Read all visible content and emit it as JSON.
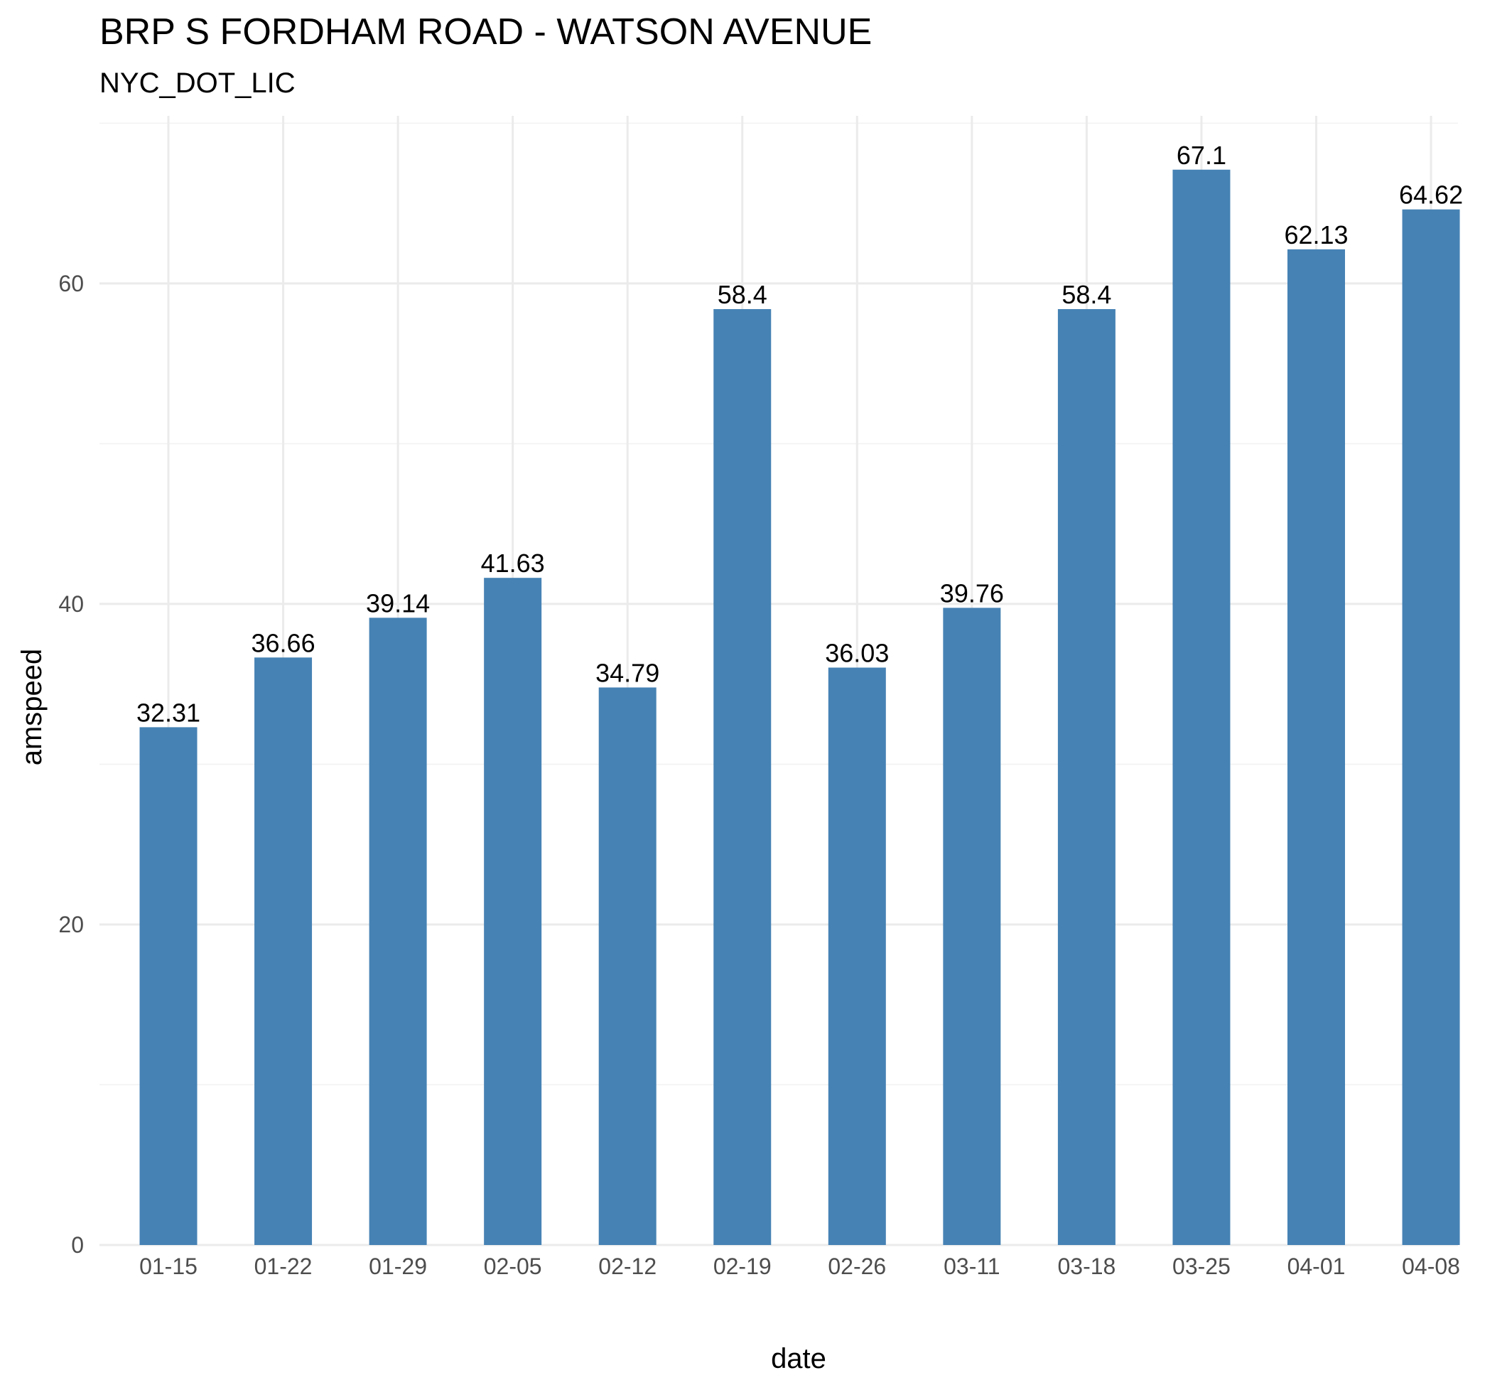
{
  "chart_data": {
    "type": "bar",
    "title": "BRP S FORDHAM ROAD - WATSON AVENUE",
    "subtitle": "NYC_DOT_LIC",
    "xlabel": "date",
    "ylabel": "amspeed",
    "categories": [
      "01-15",
      "01-22",
      "01-29",
      "02-05",
      "02-12",
      "02-19",
      "02-26",
      "03-11",
      "03-18",
      "03-25",
      "04-01",
      "04-08"
    ],
    "values": [
      32.31,
      36.66,
      39.14,
      41.63,
      34.79,
      58.4,
      36.03,
      39.76,
      58.4,
      67.1,
      62.13,
      64.62
    ],
    "data_labels": [
      "32.31",
      "36.66",
      "39.14",
      "41.63",
      "34.79",
      "58.4",
      "36.03",
      "39.76",
      "58.4",
      "67.1",
      "62.13",
      "64.62"
    ],
    "yticks": [
      0,
      20,
      40,
      60
    ],
    "ylim": [
      0,
      70.46
    ],
    "grid": true,
    "legend": "none",
    "bar_color": "#4682b4"
  }
}
